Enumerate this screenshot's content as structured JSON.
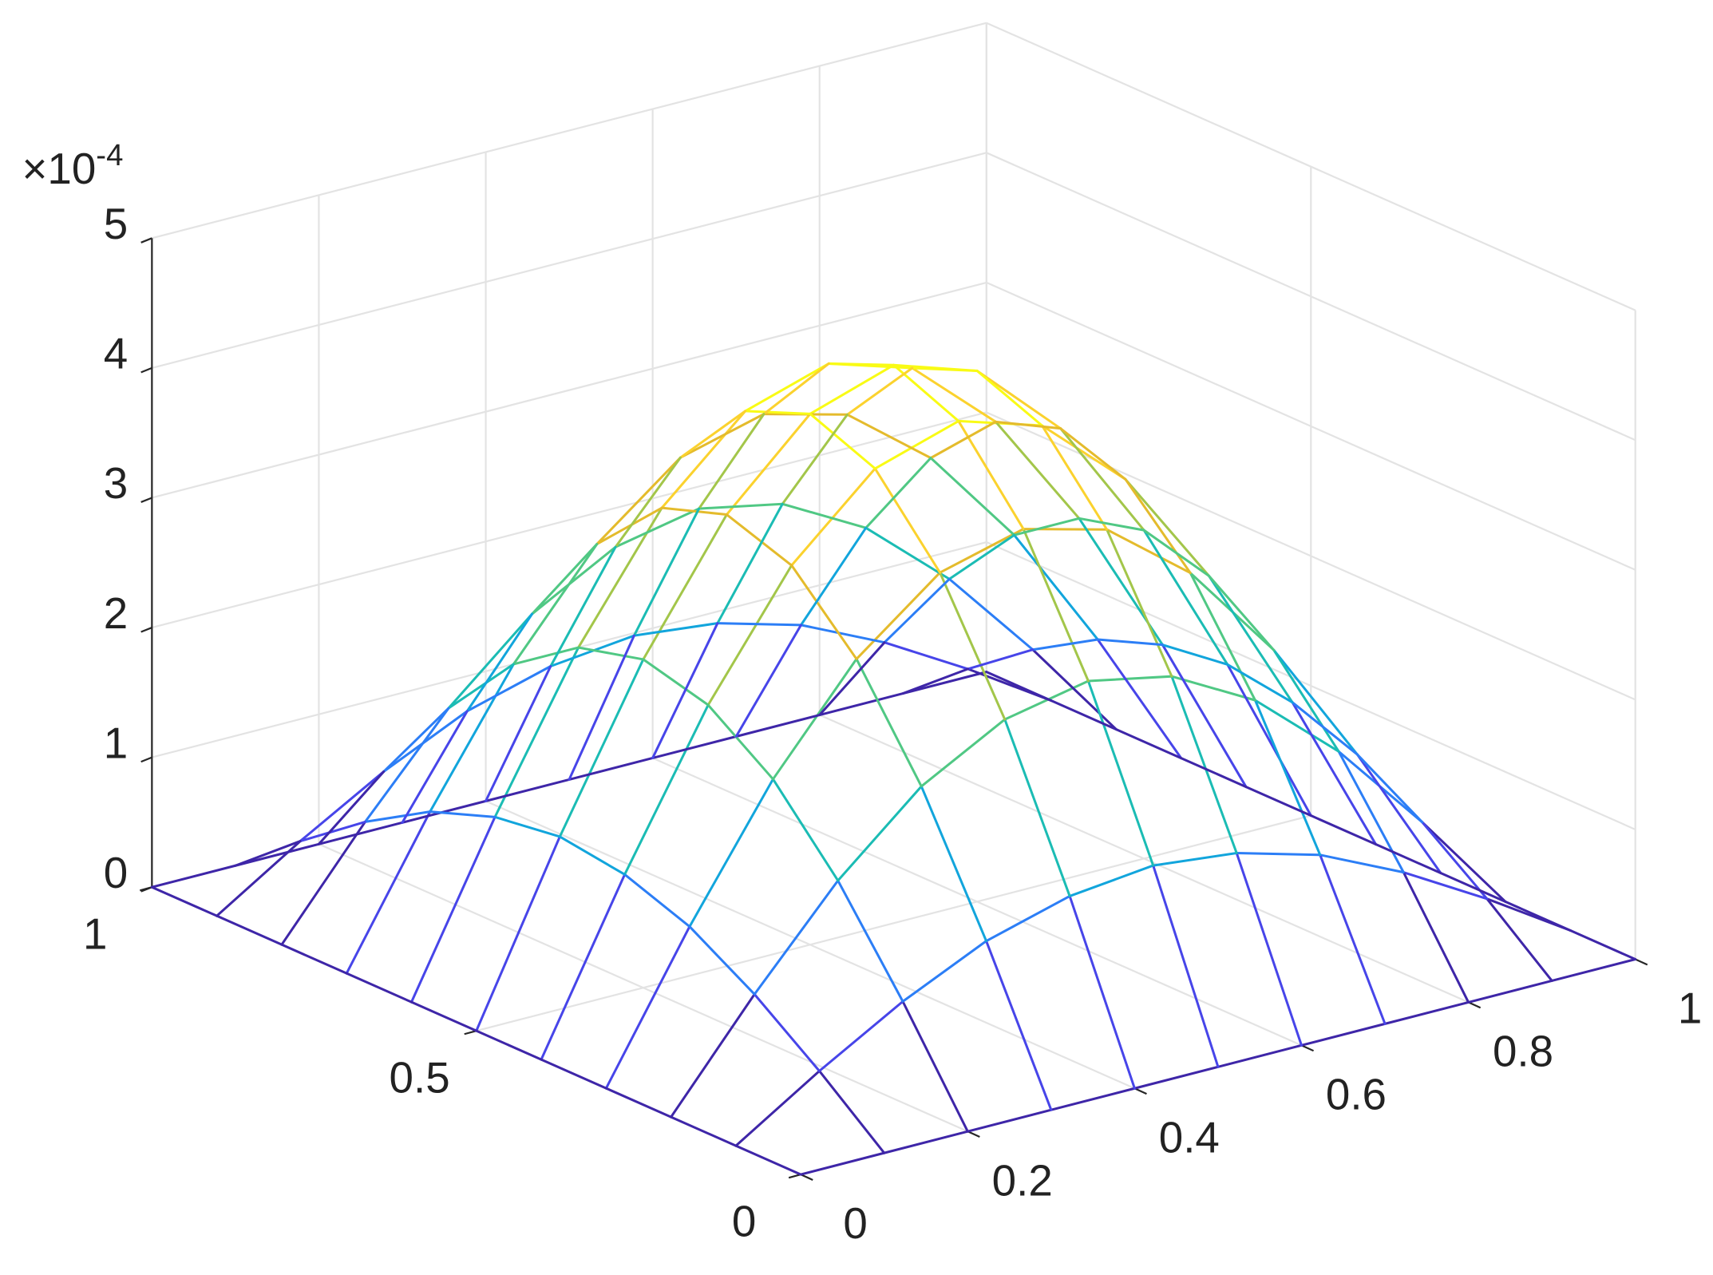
{
  "chart_data": {
    "type": "surface",
    "x": [
      0,
      0.1,
      0.2,
      0.3,
      0.4,
      0.5,
      0.6,
      0.7,
      0.8,
      0.9,
      1
    ],
    "y": [
      0,
      0.1,
      0.2,
      0.3,
      0.4,
      0.5,
      0.6,
      0.7,
      0.8,
      0.9,
      1
    ],
    "z": [
      [
        0,
        0,
        0,
        0,
        0,
        0,
        0,
        0,
        0,
        0,
        0
      ],
      [
        0,
        0.41,
        0.78,
        1.08,
        1.26,
        1.33,
        1.26,
        1.08,
        0.78,
        0.41,
        0
      ],
      [
        0,
        0.78,
        1.49,
        2.05,
        2.4,
        2.53,
        2.4,
        2.05,
        1.49,
        0.78,
        0
      ],
      [
        0,
        1.08,
        2.05,
        2.81,
        3.31,
        3.48,
        3.31,
        2.81,
        2.05,
        1.08,
        0
      ],
      [
        0,
        1.26,
        2.4,
        3.31,
        3.89,
        4.09,
        3.89,
        3.31,
        2.4,
        1.26,
        0
      ],
      [
        0,
        1.33,
        2.53,
        3.48,
        4.09,
        4.3,
        4.09,
        3.48,
        2.53,
        1.33,
        0
      ],
      [
        0,
        1.26,
        2.4,
        3.31,
        3.89,
        4.09,
        3.89,
        3.31,
        2.4,
        1.26,
        0
      ],
      [
        0,
        1.08,
        2.05,
        2.81,
        3.31,
        3.48,
        3.31,
        2.81,
        2.05,
        1.08,
        0
      ],
      [
        0,
        0.78,
        1.49,
        2.05,
        2.4,
        2.53,
        2.4,
        2.05,
        1.49,
        0.78,
        0
      ],
      [
        0,
        0.41,
        0.78,
        1.08,
        1.26,
        1.33,
        1.26,
        1.08,
        0.78,
        0.41,
        0
      ],
      [
        0,
        0,
        0,
        0,
        0,
        0,
        0,
        0,
        0,
        0,
        0
      ]
    ],
    "xlim": [
      0,
      1
    ],
    "ylim": [
      0,
      1
    ],
    "zlim": [
      0,
      5
    ],
    "xticks": [
      0,
      0.2,
      0.4,
      0.6,
      0.8,
      1
    ],
    "yticks": [
      0,
      0.5,
      1
    ],
    "zticks": [
      0,
      1,
      2,
      3,
      4,
      5
    ],
    "z_multiplier": {
      "base": "×10",
      "power": "-4"
    },
    "grid": true,
    "colormap": [
      "#3e26a8",
      "#4745e9",
      "#2c7ef6",
      "#12a5dc",
      "#1bbcb4",
      "#50c884",
      "#a3c64a",
      "#e4bb2c",
      "#fbd22e",
      "#f9fb15"
    ]
  }
}
